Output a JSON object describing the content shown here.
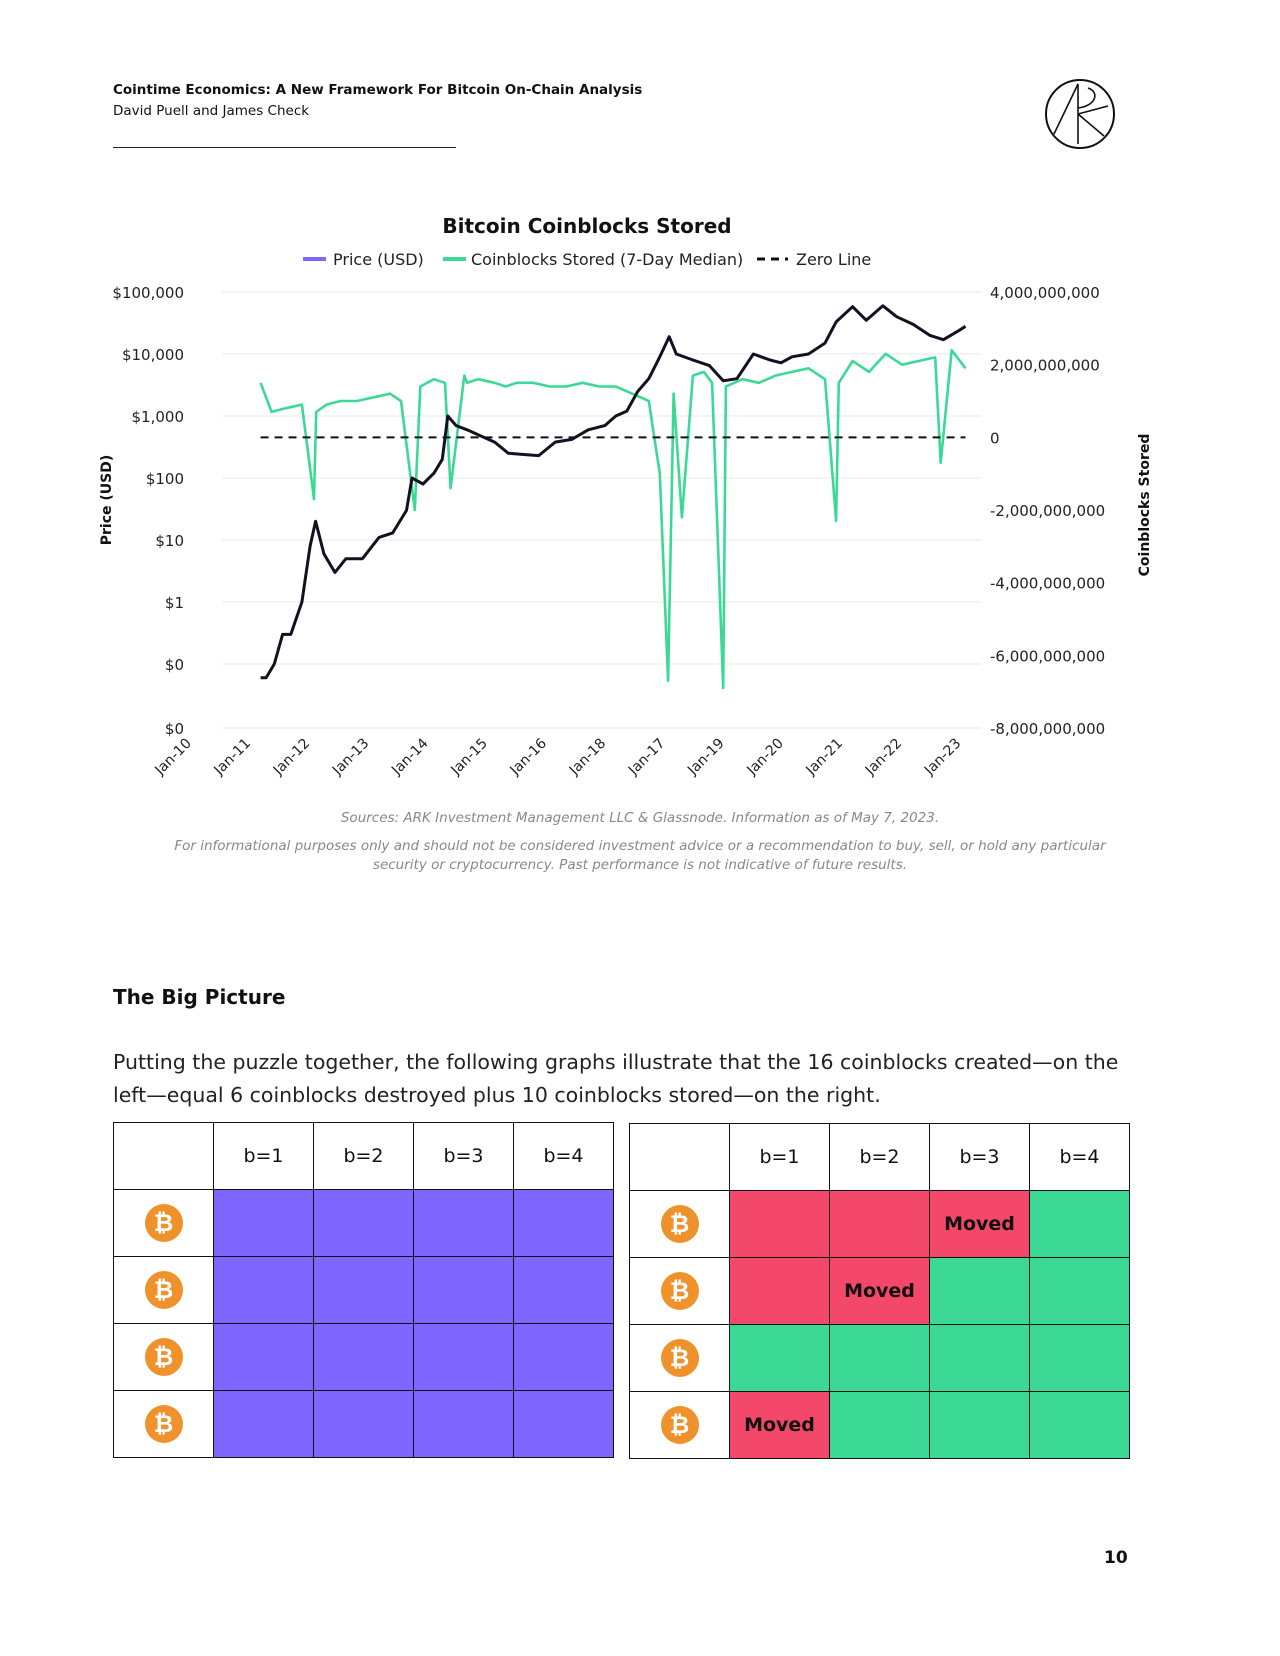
{
  "header": {
    "title": "Cointime Economics: A New Framework For Bitcoin On-Chain Analysis",
    "authors": "David Puell and James Check"
  },
  "chart_data": {
    "type": "line",
    "title": "Bitcoin Coinblocks Stored",
    "legend": [
      "Price (USD)",
      "Coinblocks Stored (7-Day Median)",
      "Zero Line"
    ],
    "legend_position": "top-center",
    "colors": {
      "price": "#111122",
      "coinblocks": "#3cd996",
      "zero": "#111111",
      "legend_price": "#7f66ff"
    },
    "ylabel_left": "Price (USD)",
    "ylabel_right": "Coinblocks Stored",
    "yleft_ticks": [
      "$100,000",
      "$10,000",
      "$1,000",
      "$100",
      "$10",
      "$1",
      "$0",
      "$0"
    ],
    "yleft_scale": "log",
    "yright_ticks": [
      "4,000,000,000",
      "2,000,000,000",
      "0",
      "-2,000,000,000",
      "-4,000,000,000",
      "-6,000,000,000",
      "-8,000,000,000"
    ],
    "yright_lim": [
      -8000000000,
      4000000000
    ],
    "x_ticks": [
      "Jan-10",
      "Jan-11",
      "Jan-12",
      "Jan-13",
      "Jan-14",
      "Jan-15",
      "Jan-16",
      "Jan-18",
      "Jan-17",
      "Jan-19",
      "Jan-20",
      "Jan-21",
      "Jan-22",
      "Jan-23"
    ],
    "grid": "horizontal",
    "series": [
      {
        "name": "Price (USD)",
        "axis": "left",
        "x": [
          2010.55,
          2010.65,
          2010.8,
          2010.95,
          2011.1,
          2011.3,
          2011.45,
          2011.55,
          2011.7,
          2011.9,
          2012.1,
          2012.4,
          2012.7,
          2012.95,
          2013.2,
          2013.3,
          2013.5,
          2013.7,
          2013.85,
          2013.95,
          2014.1,
          2014.3,
          2014.5,
          2014.8,
          2015.05,
          2015.3,
          2015.6,
          2015.9,
          2016.2,
          2016.5,
          2016.8,
          2017.0,
          2017.2,
          2017.4,
          2017.6,
          2017.8,
          2017.97,
          2018.1,
          2018.4,
          2018.7,
          2018.95,
          2019.2,
          2019.5,
          2019.8,
          2020.0,
          2020.2,
          2020.5,
          2020.8,
          2021.0,
          2021.3,
          2021.55,
          2021.85,
          2022.1,
          2022.4,
          2022.7,
          2022.95,
          2023.2,
          2023.35
        ],
        "values": [
          0.06,
          0.06,
          0.1,
          0.3,
          0.3,
          1,
          8,
          20,
          6,
          3,
          5,
          5,
          11,
          13,
          30,
          100,
          80,
          120,
          200,
          1000,
          700,
          600,
          500,
          380,
          250,
          240,
          230,
          380,
          420,
          600,
          700,
          1000,
          1200,
          2500,
          4000,
          9000,
          19000,
          10000,
          8000,
          6500,
          3700,
          4000,
          10000,
          8000,
          7200,
          9000,
          10000,
          15000,
          33000,
          58000,
          35000,
          60000,
          40000,
          30000,
          20000,
          17000,
          23000,
          28000
        ]
      },
      {
        "name": "Coinblocks Stored (7-Day Median)",
        "axis": "right",
        "x": [
          2010.55,
          2010.75,
          2011.0,
          2011.3,
          2011.52,
          2011.56,
          2011.75,
          2012.0,
          2012.3,
          2012.6,
          2012.9,
          2013.1,
          2013.35,
          2013.45,
          2013.7,
          2013.9,
          2014.0,
          2014.25,
          2014.3,
          2014.5,
          2014.8,
          2015.0,
          2015.2,
          2015.5,
          2015.8,
          2016.1,
          2016.4,
          2016.7,
          2017.0,
          2017.3,
          2017.6,
          2017.8,
          2017.95,
          2018.05,
          2018.2,
          2018.4,
          2018.6,
          2018.75,
          2018.95,
          2019.0,
          2019.3,
          2019.6,
          2019.9,
          2020.2,
          2020.5,
          2020.8,
          2021.0,
          2021.05,
          2021.3,
          2021.6,
          2021.9,
          2022.2,
          2022.5,
          2022.8,
          2022.9,
          2023.1,
          2023.35
        ],
        "values": [
          1500000000,
          700000000,
          800000000,
          900000000,
          -1700000000,
          700000000,
          900000000,
          1000000000,
          1000000000,
          1100000000,
          1200000000,
          1000000000,
          -2000000000,
          1400000000,
          1600000000,
          1500000000,
          -1400000000,
          1700000000,
          1500000000,
          1600000000,
          1500000000,
          1400000000,
          1500000000,
          1500000000,
          1400000000,
          1400000000,
          1500000000,
          1400000000,
          1400000000,
          1200000000,
          1000000000,
          -1000000000,
          -6700000000,
          1200000000,
          -2200000000,
          1700000000,
          1800000000,
          1500000000,
          -6900000000,
          1400000000,
          1600000000,
          1500000000,
          1700000000,
          1800000000,
          1900000000,
          1600000000,
          -2300000000,
          1500000000,
          2100000000,
          1800000000,
          2300000000,
          2000000000,
          2100000000,
          2200000000,
          -700000000,
          2400000000,
          1900000000
        ]
      },
      {
        "name": "Zero Line",
        "axis": "right",
        "x": [
          2010.55,
          2023.35
        ],
        "values": [
          0,
          0
        ]
      }
    ]
  },
  "sources_text": "Sources: ARK Investment Management LLC & Glassnode. Information as of May 7, 2023.",
  "disclaimer_line1": "For informational purposes only and should not be considered investment advice or a recommendation to buy, sell, or hold any particular",
  "disclaimer_line2": "security or cryptocurrency. Past performance is not indicative of future results.",
  "section_title": "The Big Picture",
  "paragraph": "Putting the puzzle together, the following graphs illustrate that the 16 coinblocks created—on the left—equal 6 coinblocks destroyed plus 10 coinblocks stored—on the right.",
  "table_headers": [
    "b=1",
    "b=2",
    "b=3",
    "b=4"
  ],
  "bitcoin_symbol": "₿",
  "moved_label": "Moved",
  "left_grid": [
    [
      "purple",
      "purple",
      "purple",
      "purple"
    ],
    [
      "purple",
      "purple",
      "purple",
      "purple"
    ],
    [
      "purple",
      "purple",
      "purple",
      "purple"
    ],
    [
      "purple",
      "purple",
      "purple",
      "purple"
    ]
  ],
  "right_grid": [
    [
      "red",
      "red",
      "moved-red",
      "green"
    ],
    [
      "red",
      "moved-red",
      "green",
      "green"
    ],
    [
      "green",
      "green",
      "green",
      "green"
    ],
    [
      "moved-red",
      "green",
      "green",
      "green"
    ]
  ],
  "page_number": "10"
}
